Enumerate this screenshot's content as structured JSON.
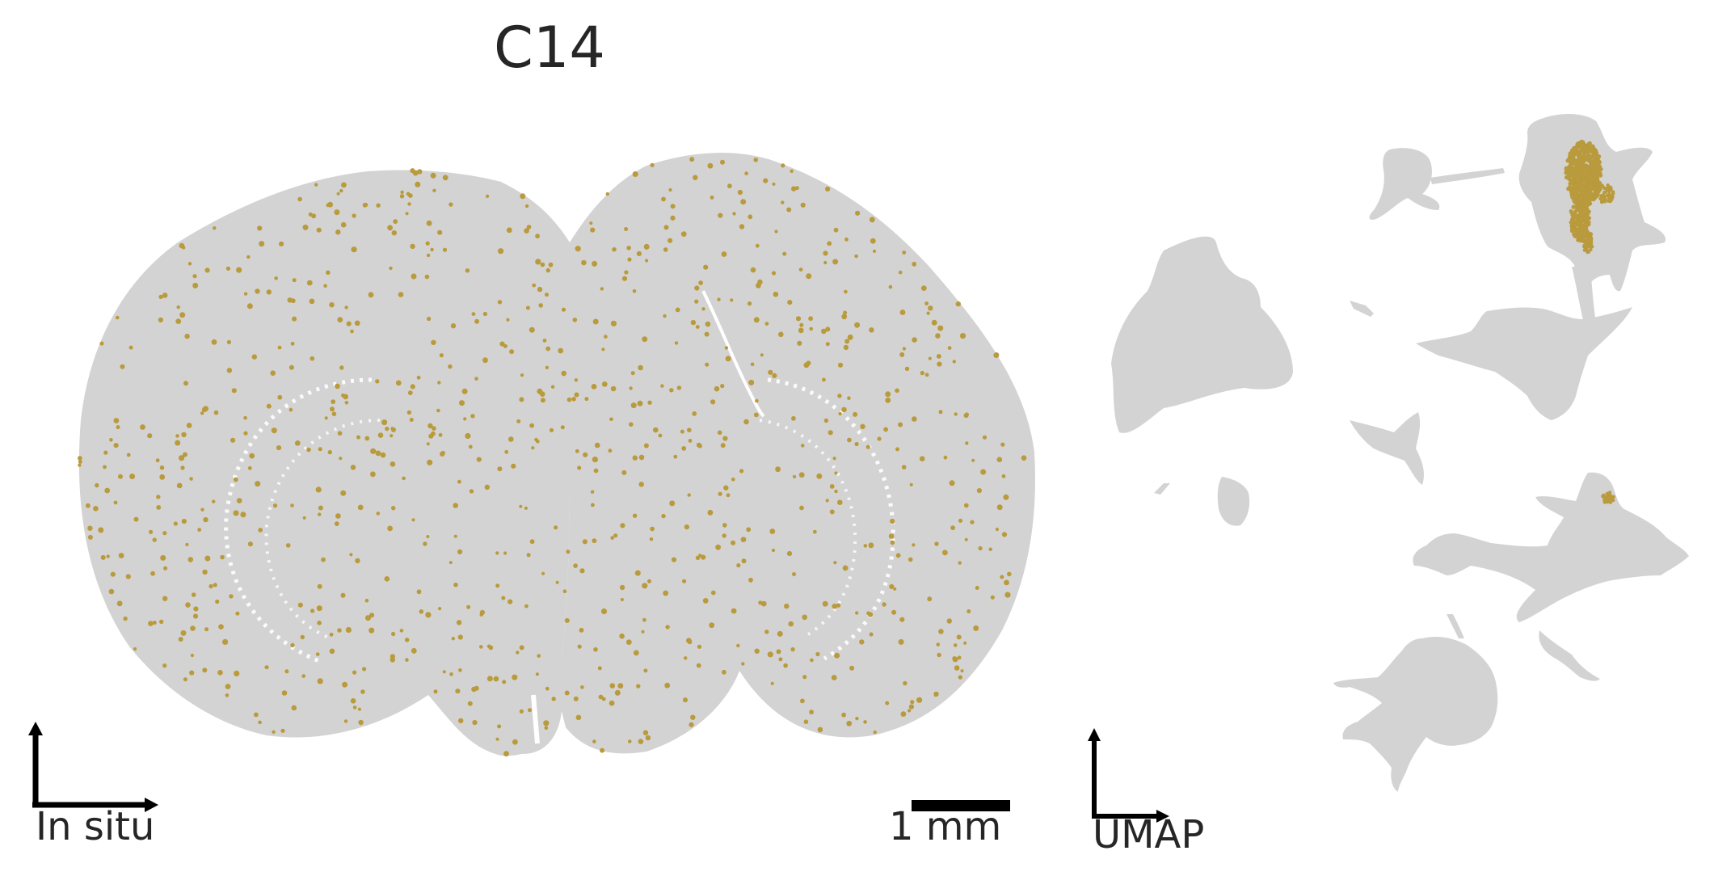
{
  "title": "C14",
  "insitu_label": "In situ",
  "scalebar_label": "1 mm",
  "umap_label": "UMAP",
  "colors": {
    "background_cells": "#d3d3d3",
    "highlight_cells": "#b99a3c",
    "axis": "#000000",
    "text": "#262626"
  }
}
